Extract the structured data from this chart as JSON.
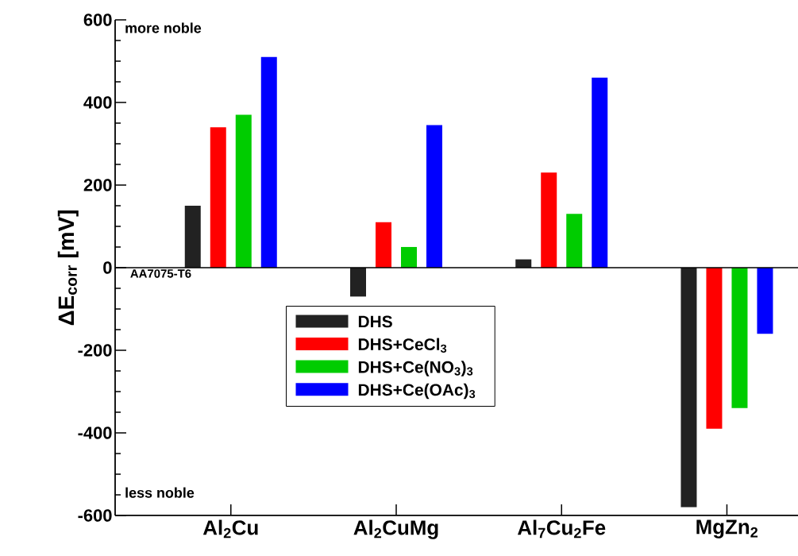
{
  "chart_data": {
    "type": "bar",
    "ylabel": "ΔE$_{corr}$ [mV]",
    "categories": [
      "Al$_{2}$Cu",
      "Al$_{2}$CuMg",
      "Al$_{7}$Cu$_{2}$Fe",
      "MgZn$_{2}$"
    ],
    "series": [
      {
        "name": "DHS",
        "color": "#222222",
        "values": [
          150,
          -70,
          20,
          -580
        ]
      },
      {
        "name": "DHS+CeCl$_{3}$",
        "color": "#ff0000",
        "values": [
          340,
          110,
          230,
          -390
        ]
      },
      {
        "name": "DHS+Ce(NO$_{3}$)$_{3}$",
        "color": "#00cc00",
        "values": [
          370,
          50,
          130,
          -340
        ]
      },
      {
        "name": "DHS+Ce(OAc)$_{3}$",
        "color": "#0000ff",
        "values": [
          510,
          345,
          460,
          -160
        ]
      }
    ],
    "ylim": [
      -600,
      600
    ],
    "yticks": [
      -600,
      -400,
      -200,
      0,
      200,
      400,
      600
    ],
    "ref_lines": [
      {
        "axis": "y",
        "value": 0,
        "label": "AA7075-T6"
      }
    ],
    "annotations": [
      "more noble",
      "less noble"
    ],
    "legend": "bottom"
  }
}
